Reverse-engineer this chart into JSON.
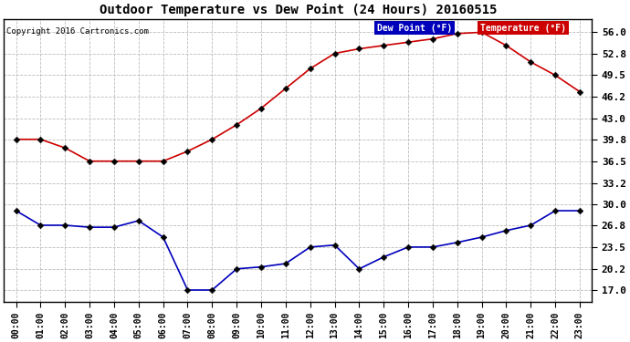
{
  "title": "Outdoor Temperature vs Dew Point (24 Hours) 20160515",
  "copyright": "Copyright 2016 Cartronics.com",
  "hours": [
    "00:00",
    "01:00",
    "02:00",
    "03:00",
    "04:00",
    "05:00",
    "06:00",
    "07:00",
    "08:00",
    "09:00",
    "10:00",
    "11:00",
    "12:00",
    "13:00",
    "14:00",
    "15:00",
    "16:00",
    "17:00",
    "18:00",
    "19:00",
    "20:00",
    "21:00",
    "22:00",
    "23:00"
  ],
  "temperature": [
    39.8,
    39.8,
    38.5,
    36.5,
    36.5,
    36.5,
    36.5,
    38.0,
    39.8,
    42.0,
    44.5,
    47.5,
    50.5,
    52.8,
    53.5,
    54.0,
    54.5,
    55.0,
    55.8,
    56.0,
    54.0,
    51.5,
    49.5,
    47.0
  ],
  "dew_point": [
    29.0,
    26.8,
    26.8,
    26.5,
    26.5,
    27.5,
    25.0,
    17.0,
    17.0,
    20.2,
    20.5,
    21.0,
    23.5,
    23.8,
    20.2,
    22.0,
    23.5,
    23.5,
    24.2,
    25.0,
    26.0,
    26.8,
    29.0,
    29.0
  ],
  "temp_color": "#cc0000",
  "dew_color": "#0000bb",
  "bg_color": "#ffffff",
  "grid_color": "#bbbbbb",
  "yticks": [
    17.0,
    20.2,
    23.5,
    26.8,
    30.0,
    33.2,
    36.5,
    39.8,
    43.0,
    46.2,
    49.5,
    52.8,
    56.0
  ],
  "ymin": 15.2,
  "ymax": 58.0
}
